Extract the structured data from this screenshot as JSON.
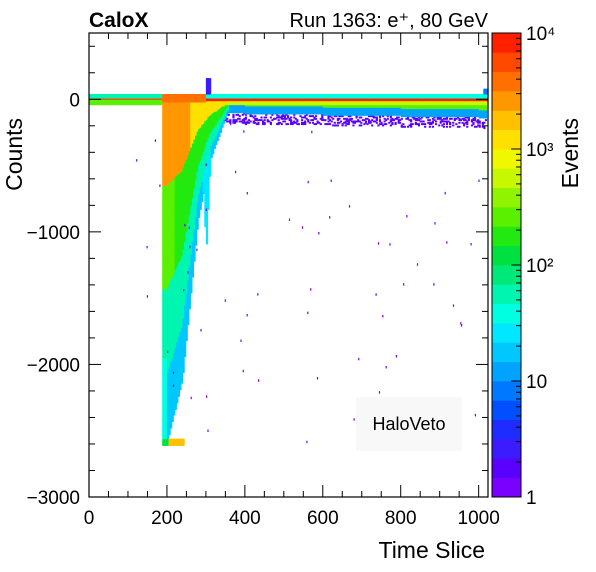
{
  "header": {
    "left": "CaloX",
    "right": "Run 1363: e⁺, 80 GeV"
  },
  "chart_data": {
    "type": "heatmap",
    "xlabel": "Time Slice",
    "ylabel": "Counts",
    "zlabel": "Events",
    "xlim": [
      0,
      1024
    ],
    "ylim": [
      -3000,
      500
    ],
    "zlim": [
      1,
      10000
    ],
    "z_scale": "log",
    "x_ticks": [
      0,
      200,
      400,
      600,
      800,
      1000
    ],
    "x_tick_labels": [
      "0",
      "200",
      "400",
      "600",
      "800",
      "1000"
    ],
    "y_ticks": [
      0,
      -1000,
      -2000,
      -3000
    ],
    "y_tick_labels": [
      "0",
      "−1000",
      "−2000",
      "−3000"
    ],
    "z_ticks": [
      1,
      10,
      100,
      1000,
      10000
    ],
    "z_tick_labels": [
      "1",
      "10",
      "10²",
      "10³",
      "10⁴"
    ],
    "annotation": "HaloVeto",
    "palette": [
      "#7a00ff",
      "#5a00ff",
      "#3c1cff",
      "#1e2cff",
      "#0050ff",
      "#0078ff",
      "#00a4ff",
      "#00c8ff",
      "#00e8ff",
      "#00ffe0",
      "#00f5b0",
      "#00e878",
      "#00e040",
      "#22ea10",
      "#5af000",
      "#90f400",
      "#c8f800",
      "#f0f800",
      "#ffe000",
      "#ffc000",
      "#ff9800",
      "#ff7000",
      "#ff4800",
      "#ff2000"
    ],
    "features": [
      {
        "name": "pedestal-band",
        "x": [
          0,
          1024
        ],
        "y": [
          -50,
          50
        ],
        "peak_events": 10000
      },
      {
        "name": "main-pulse",
        "x_onset": 190,
        "x_peak": 200,
        "y_min": -2600,
        "recovery_x": 350
      },
      {
        "name": "secondary-pulse",
        "x": [
          290,
          310
        ],
        "y_min": -1150
      },
      {
        "name": "baseline-tail",
        "x": [
          300,
          1024
        ],
        "y": [
          -350,
          0
        ]
      },
      {
        "name": "saturation-cluster",
        "x": [
          190,
          245
        ],
        "y": [
          -2610,
          -2560
        ]
      }
    ]
  }
}
